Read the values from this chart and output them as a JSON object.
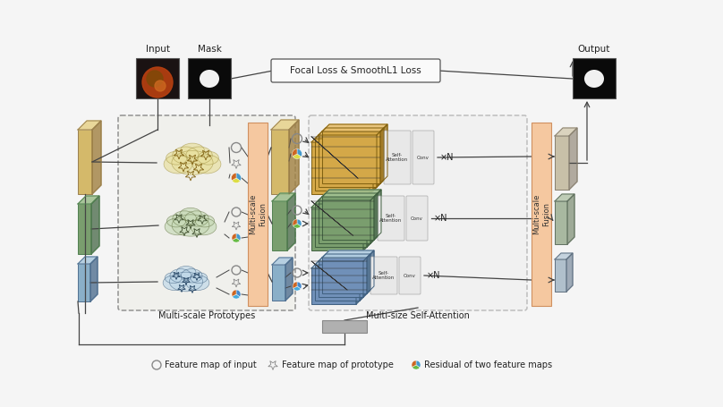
{
  "bg_color": "#f5f5f5",
  "focal_loss_label": "Focal Loss & SmoothL1 Loss",
  "multiscale_proto_label": "Multi-scale Prototypes",
  "multiscale_fusion_label": "Multi-scale\nFusion",
  "multisize_sa_label": "Multi-size Self-Attention",
  "input_label": "Input",
  "mask_label": "Mask",
  "output_label": "Output",
  "xN_label": "×N",
  "legend_circle": "○ Feature map of input",
  "legend_star": "☆ Feature map of prototype",
  "legend_pie": "⟳ Residual of two feature maps",
  "colors": {
    "yellow_feat": "#d4b96a",
    "yellow_feat_top": "#e8d490",
    "yellow_feat_side": "#a08040",
    "green_feat": "#7a9e6e",
    "green_feat_top": "#a0c090",
    "green_feat_side": "#507050",
    "blue_feat": "#8aafc8",
    "blue_feat_top": "#b0cce0",
    "blue_feat_side": "#507090",
    "cloud_yellow": "#e8e0a0",
    "cloud_green": "#c8dab8",
    "cloud_blue": "#c0d8e8",
    "fusion_bar": "#f5c8a0",
    "fusion_bar_edge": "#d09060",
    "sa_yellow": "#d4a848",
    "sa_green": "#7a9e6e",
    "sa_blue": "#7090b8",
    "out_gray1": "#c8c0b0",
    "out_gray2": "#a8b8a0",
    "out_gray3": "#b0c0cc",
    "gray_box": "#b0b0b0",
    "line": "#444444",
    "dashed": "#888888",
    "text": "#222222",
    "black": "#111111",
    "white": "#ffffff",
    "orange": "#cc5500"
  }
}
